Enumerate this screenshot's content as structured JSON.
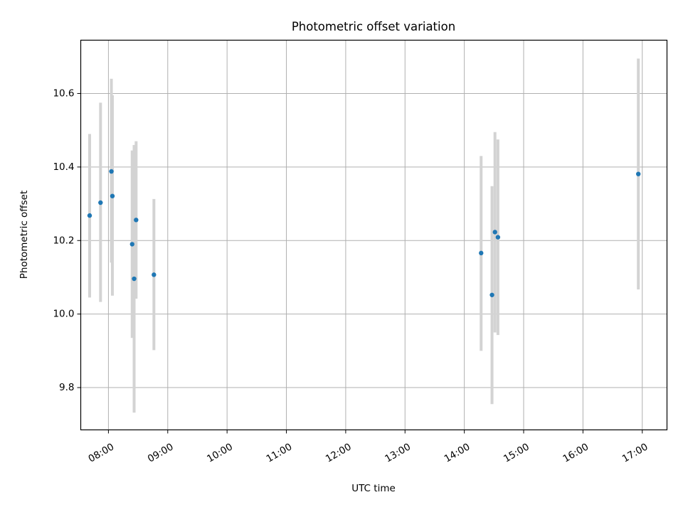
{
  "chart_data": {
    "type": "scatter",
    "title": "Photometric offset variation",
    "xlabel": "UTC time",
    "ylabel": "Photometric offset",
    "xlim": [
      "07:32",
      "17:25"
    ],
    "ylim": [
      9.685,
      10.745
    ],
    "grid": true,
    "xticks": [
      "08:00",
      "09:00",
      "10:00",
      "11:00",
      "12:00",
      "13:00",
      "14:00",
      "15:00",
      "16:00",
      "17:00"
    ],
    "yticks": [
      9.8,
      10.0,
      10.2,
      10.4,
      10.6
    ],
    "ytick_labels": [
      "9.8",
      "10.0",
      "10.2",
      "10.4",
      "10.6"
    ],
    "marker_color": "#1f77b4",
    "errorbar_color": "#d3d3d3",
    "points": [
      {
        "x": "07:41",
        "y": 10.268,
        "ylow": 10.045,
        "yhigh": 10.49
      },
      {
        "x": "07:52",
        "y": 10.303,
        "ylow": 10.033,
        "yhigh": 10.575
      },
      {
        "x": "08:03",
        "y": 10.388,
        "ylow": 10.14,
        "yhigh": 10.64
      },
      {
        "x": "08:04",
        "y": 10.321,
        "ylow": 10.05,
        "yhigh": 10.595
      },
      {
        "x": "08:24",
        "y": 10.19,
        "ylow": 9.935,
        "yhigh": 10.445
      },
      {
        "x": "08:26",
        "y": 10.096,
        "ylow": 9.732,
        "yhigh": 10.46
      },
      {
        "x": "08:28",
        "y": 10.256,
        "ylow": 10.042,
        "yhigh": 10.47
      },
      {
        "x": "08:46",
        "y": 10.107,
        "ylow": 9.902,
        "yhigh": 10.313
      },
      {
        "x": "14:17",
        "y": 10.166,
        "ylow": 9.9,
        "yhigh": 10.43
      },
      {
        "x": "14:28",
        "y": 10.052,
        "ylow": 9.755,
        "yhigh": 10.348
      },
      {
        "x": "14:31",
        "y": 10.223,
        "ylow": 9.95,
        "yhigh": 10.495
      },
      {
        "x": "14:34",
        "y": 10.209,
        "ylow": 9.943,
        "yhigh": 10.475
      },
      {
        "x": "16:56",
        "y": 10.381,
        "ylow": 10.067,
        "yhigh": 10.695
      }
    ]
  }
}
